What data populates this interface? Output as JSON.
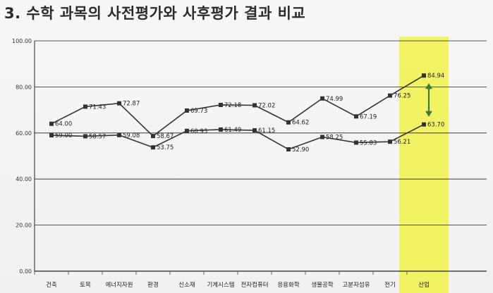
{
  "page": {
    "title": "3. 수학 과목의 사전평가와 사후평가 결과 비교"
  },
  "chart_data": {
    "type": "line",
    "title": "",
    "xlabel": "",
    "ylabel": "",
    "ylim": [
      0,
      100
    ],
    "yticks": [
      "0.00",
      "20.00",
      "40.00",
      "60.00",
      "80.00",
      "100.00"
    ],
    "categories": [
      "건축",
      "토목",
      "에너지자원",
      "환경",
      "신소재",
      "기계시스템",
      "전자컴퓨터",
      "응용화학",
      "생물공학",
      "고분자섬유",
      "전기",
      "산업"
    ],
    "series": [
      {
        "name": "",
        "values": [
          64.0,
          71.43,
          72.87,
          58.67,
          69.73,
          72.18,
          72.02,
          64.62,
          74.99,
          67.19,
          76.25,
          84.94
        ],
        "labels": [
          "64.00",
          "71.43",
          "72.87",
          "58.67",
          "69.73",
          "72.18",
          "72.02",
          "64.62",
          "74.99",
          "67.19",
          "76.25",
          "84.94"
        ]
      },
      {
        "name": "",
        "values": [
          59.0,
          58.57,
          59.08,
          53.75,
          60.93,
          61.49,
          61.15,
          52.9,
          58.25,
          55.83,
          56.21,
          63.7
        ],
        "labels": [
          "59.00",
          "58.57",
          "59.08",
          "53.75",
          "60.93",
          "61.49",
          "61.15",
          "52.90",
          "58.25",
          "55.83",
          "56.21",
          "63.70"
        ]
      }
    ],
    "highlight_category": "산업",
    "colors": {
      "line": "#333333",
      "highlight": "#f2f245",
      "arrow": "#3c7a3c",
      "grid": "#222222"
    }
  }
}
